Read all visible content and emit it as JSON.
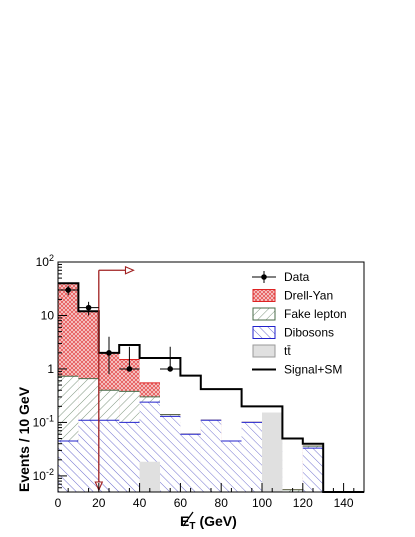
{
  "chart_data": {
    "type": "bar",
    "title": "",
    "xlabel": "E̸T (GeV)",
    "xlabel_parts": {
      "symbol": "E",
      "subscript": "T",
      "unit": "(GeV)"
    },
    "ylabel": "Events / 10 GeV",
    "xlim": [
      0,
      150
    ],
    "ylim": [
      0.005,
      100
    ],
    "yscale": "log",
    "grid": false,
    "legend_position": "top-right",
    "x_ticks": [
      0,
      20,
      40,
      60,
      80,
      100,
      120,
      140
    ],
    "x_tick_labels": [
      "0",
      "20",
      "40",
      "60",
      "80",
      "100",
      "120",
      "140"
    ],
    "y_ticks": [
      0.01,
      0.1,
      1,
      10,
      100
    ],
    "y_tick_labels": [
      {
        "base": "10",
        "exp": "-2"
      },
      {
        "base": "10",
        "exp": "-1"
      },
      {
        "base": "1",
        "exp": ""
      },
      {
        "base": "10",
        "exp": ""
      },
      {
        "base": "10",
        "exp": "2"
      }
    ],
    "bin_edges": [
      0,
      10,
      20,
      30,
      40,
      50,
      60,
      70,
      80,
      90,
      100,
      110,
      120,
      130,
      140,
      150
    ],
    "stack_order": [
      "ttbar",
      "dibosons",
      "fake_lepton",
      "drell_yan"
    ],
    "series": [
      {
        "key": "ttbar",
        "name": "tt̄",
        "style": "solid-grey",
        "color": "#e0e0e0",
        "values": [
          0.005,
          0.005,
          0.005,
          0.005,
          0.018,
          0.005,
          0.005,
          0.005,
          0.005,
          0.005,
          0.15,
          0.005,
          0.005,
          0,
          0
        ]
      },
      {
        "key": "dibosons",
        "name": "Dibosons",
        "style": "blue-hatch",
        "color": "#2222cc",
        "values": [
          0.045,
          0.11,
          0.11,
          0.1,
          0.24,
          0.13,
          0.06,
          0.11,
          0.045,
          0.1,
          0.15,
          0.005,
          0.033,
          0,
          0
        ]
      },
      {
        "key": "fake_lepton",
        "name": "Fake lepton",
        "style": "green-hatch",
        "color": "#4a6b4a",
        "values": [
          0.73,
          0.66,
          0.4,
          0.38,
          0.3,
          0.14,
          0.06,
          0.11,
          0.045,
          0.1,
          0.15,
          0.0055,
          0.036,
          0,
          0
        ]
      },
      {
        "key": "drell_yan",
        "name": "Drell-Yan",
        "style": "red-hatch",
        "color": "#dd2222",
        "values": [
          40,
          12,
          2,
          1.5,
          0.55,
          0.14,
          0.06,
          0.11,
          0.045,
          0.1,
          0.15,
          0.0055,
          0.036,
          0,
          0
        ]
      }
    ],
    "total": {
      "name": "Signal+SM",
      "color": "#000000",
      "values": [
        40,
        12,
        2,
        2.8,
        1.6,
        1.6,
        0.75,
        0.42,
        0.42,
        0.2,
        0.2,
        0.05,
        0.04,
        0,
        0
      ]
    },
    "data_points": {
      "name": "Data",
      "x": [
        5,
        15,
        25,
        35,
        55
      ],
      "y": [
        30,
        14,
        2,
        1,
        1
      ],
      "err_low": [
        24,
        10,
        0.8,
        0.9,
        0.9
      ],
      "err_high": [
        36,
        18,
        4,
        2.6,
        2.6
      ]
    },
    "cut": {
      "x": 20,
      "y_top": 70,
      "y_bottom": 0.005,
      "arrow_to_x": 37,
      "color": "#a02020"
    }
  },
  "legend": {
    "entries": [
      {
        "key": "data",
        "label": "Data"
      },
      {
        "key": "drell_yan",
        "label": "Drell-Yan"
      },
      {
        "key": "fake_lepton",
        "label": "Fake lepton"
      },
      {
        "key": "dibosons",
        "label": "Dibosons"
      },
      {
        "key": "ttbar",
        "label": "tt̄"
      },
      {
        "key": "total",
        "label": "Signal+SM"
      }
    ]
  }
}
